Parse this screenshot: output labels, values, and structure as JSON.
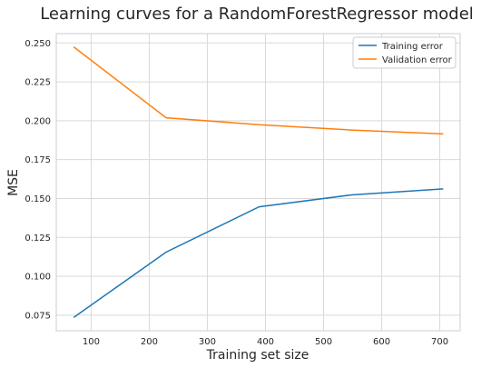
{
  "chart_data": {
    "type": "line",
    "title": "Learning curves for a RandomForestRegressor model",
    "xlabel": "Training set size",
    "ylabel": "MSE",
    "xlim": [
      40,
      735
    ],
    "ylim": [
      0.065,
      0.256
    ],
    "xticks": [
      100,
      200,
      300,
      400,
      500,
      600,
      700
    ],
    "yticks": [
      0.075,
      0.1,
      0.125,
      0.15,
      0.175,
      0.2,
      0.225,
      0.25
    ],
    "grid": true,
    "legend_position": "top-right",
    "series": [
      {
        "name": "Training error",
        "color": "#1f77b4",
        "x": [
          70,
          229,
          389,
          548,
          706
        ],
        "y": [
          0.0735,
          0.1155,
          0.1447,
          0.1523,
          0.1562
        ]
      },
      {
        "name": "Validation error",
        "color": "#ff7f0e",
        "x": [
          70,
          229,
          389,
          548,
          706
        ],
        "y": [
          0.2475,
          0.2019,
          0.1975,
          0.194,
          0.1915
        ]
      }
    ]
  }
}
